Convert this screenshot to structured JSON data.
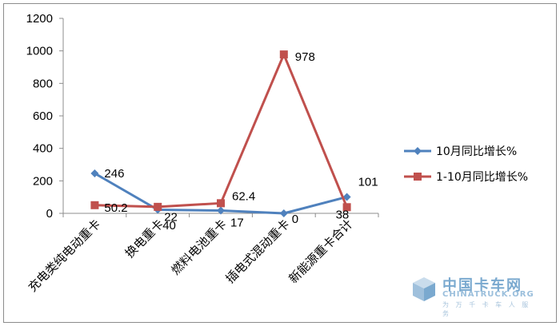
{
  "chart_data": {
    "type": "line",
    "title": "",
    "xlabel": "",
    "ylabel": "",
    "ylim": [
      0,
      1200
    ],
    "yticks": [
      0,
      200,
      400,
      600,
      800,
      1000,
      1200
    ],
    "grid": false,
    "legend": "right",
    "categories": [
      "充电类纯电动重卡",
      "换电重卡",
      "燃料电池重卡",
      "插电式混动重卡",
      "新能源重卡合计"
    ],
    "series": [
      {
        "name": "10月同比增长%",
        "color": "#4f81bd",
        "marker": "diamond",
        "values": [
          246,
          22,
          17,
          0,
          101
        ],
        "labels": [
          "246",
          "22",
          "17",
          "0",
          "101"
        ]
      },
      {
        "name": "1-10月同比增长%",
        "color": "#c0504d",
        "marker": "square",
        "values": [
          50.2,
          40,
          62.4,
          978,
          38
        ],
        "labels": [
          "50.2",
          "40",
          "62.4",
          "978",
          "38"
        ]
      }
    ]
  },
  "watermark": {
    "cn": "中国卡车网",
    "en": "CHINATRUCK.ORG",
    "sub": "为 万 千 卡 车 人 服 务",
    "colors": {
      "primary": "#7aa9cf",
      "light": "#a8c4dc"
    }
  }
}
